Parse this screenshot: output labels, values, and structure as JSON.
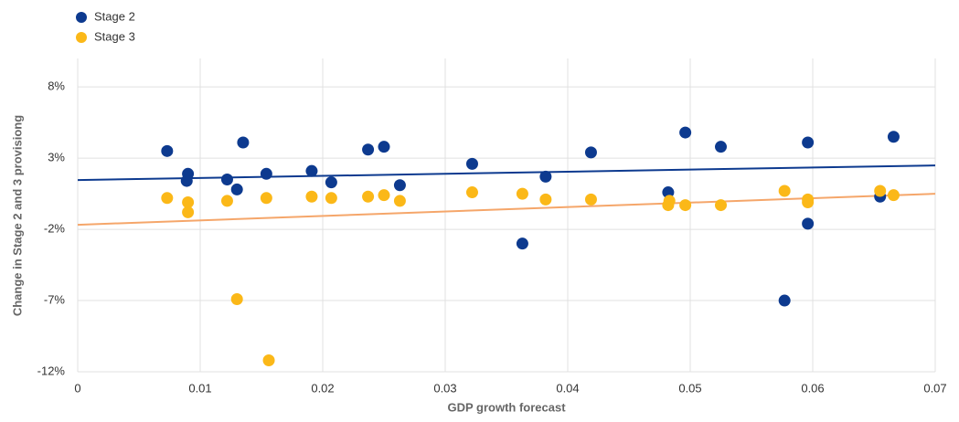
{
  "chart_data": {
    "type": "scatter",
    "xlabel": "GDP growth forecast",
    "ylabel": "Change in Stage 2 and 3 provisiong",
    "xlim": [
      0,
      0.07
    ],
    "ylim": [
      -12,
      10
    ],
    "xticks": [
      0,
      0.01,
      0.02,
      0.03,
      0.04,
      0.05,
      0.06,
      0.07
    ],
    "yticks": [
      {
        "value": -12,
        "label": "-12%"
      },
      {
        "value": -7,
        "label": "-7%"
      },
      {
        "value": -2,
        "label": "-2%"
      },
      {
        "value": 3,
        "label": "3%"
      },
      {
        "value": 8,
        "label": "8%"
      }
    ],
    "grid": true,
    "legend": "top-left",
    "series": [
      {
        "name": "Stage 2",
        "color": "#0d3a8f",
        "x": [
          0.0073,
          0.009,
          0.0089,
          0.0122,
          0.013,
          0.0135,
          0.0154,
          0.0191,
          0.0207,
          0.0237,
          0.025,
          0.0263,
          0.0322,
          0.0363,
          0.0382,
          0.0419,
          0.0482,
          0.0496,
          0.0525,
          0.0577,
          0.0596,
          0.0596,
          0.0655,
          0.0666
        ],
        "values": [
          3.5,
          1.9,
          1.4,
          1.5,
          0.8,
          4.1,
          1.9,
          2.1,
          1.3,
          3.6,
          3.8,
          1.1,
          2.6,
          -3.0,
          1.7,
          3.4,
          0.6,
          4.8,
          3.8,
          -7.0,
          4.1,
          -1.6,
          0.3,
          4.5
        ],
        "trend": {
          "color": "#0d3a8f",
          "x": [
            0,
            0.07
          ],
          "values": [
            1.46,
            2.49
          ]
        }
      },
      {
        "name": "Stage 3",
        "color": "#fbb818",
        "x": [
          0.0073,
          0.009,
          0.009,
          0.0122,
          0.013,
          0.0154,
          0.0156,
          0.0191,
          0.0207,
          0.0237,
          0.025,
          0.0263,
          0.0322,
          0.0363,
          0.0382,
          0.0419,
          0.0482,
          0.0483,
          0.0496,
          0.0525,
          0.0577,
          0.0596,
          0.0596,
          0.0655,
          0.0666
        ],
        "values": [
          0.2,
          -0.1,
          -0.8,
          0.0,
          -6.9,
          0.2,
          -11.2,
          0.3,
          0.2,
          0.3,
          0.4,
          0.0,
          0.6,
          0.5,
          0.1,
          0.1,
          -0.3,
          0.0,
          -0.3,
          -0.3,
          0.7,
          0.1,
          -0.1,
          0.7,
          0.4
        ],
        "trend": {
          "color": "#f5a66a",
          "x": [
            0,
            0.07
          ],
          "values": [
            -1.68,
            0.5
          ]
        }
      }
    ]
  }
}
